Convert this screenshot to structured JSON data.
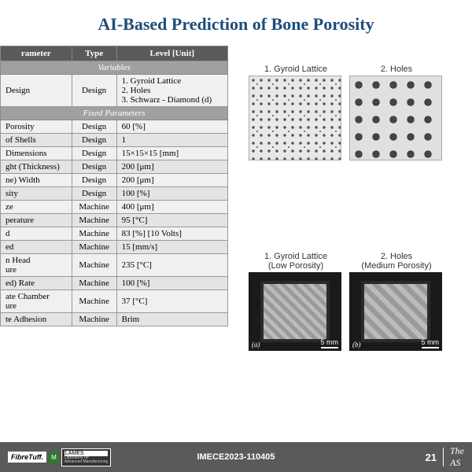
{
  "title": "AI-Based Prediction of Bone Porosity",
  "table": {
    "headers": [
      "rameter",
      "Type",
      "Level [Unit]"
    ],
    "sub_variables": "Variables",
    "sub_fixed": "Fixed Parameters",
    "var_rows": [
      {
        "param": "Design",
        "type": "Design",
        "level": "1. Gyroid Lattice\n2. Holes\n3. Schwarz - Diamond (d)"
      }
    ],
    "fixed_rows": [
      {
        "param": "Porosity",
        "type": "Design",
        "level": "60 [%]"
      },
      {
        "param": "of Shells",
        "type": "Design",
        "level": "1"
      },
      {
        "param": "Dimensions",
        "type": "Design",
        "level": "15×15×15 [mm]"
      },
      {
        "param": "ght (Thickness)",
        "type": "Design",
        "level": "200 [μm]"
      },
      {
        "param": "ne) Width",
        "type": "Design",
        "level": "200 [μm]"
      },
      {
        "param": "sity",
        "type": "Design",
        "level": "100 [%]"
      },
      {
        "param": "ze",
        "type": "Machine",
        "level": "400 [μm]"
      },
      {
        "param": "perature",
        "type": "Machine",
        "level": "95 [°C]"
      },
      {
        "param": "d",
        "type": "Machine",
        "level": "83 [%] [10 Volts]"
      },
      {
        "param": "ed",
        "type": "Machine",
        "level": "15 [mm/s]"
      },
      {
        "param": "n Head\nure",
        "type": "Machine",
        "level": "235 [°C]"
      },
      {
        "param": "ed) Rate",
        "type": "Machine",
        "level": "100 [%]"
      },
      {
        "param": "ate Chamber\nure",
        "type": "Machine",
        "level": "37 [°C]"
      },
      {
        "param": "te Adhesion",
        "type": "Machine",
        "level": "Brim"
      }
    ]
  },
  "lattice": {
    "top_labels": [
      "1. Gyroid Lattice",
      "2. Holes"
    ],
    "bottom_labels": [
      "1. Gyroid Lattice\n(Low Porosity)",
      "2. Holes\n(Medium Porosity)"
    ],
    "photo_tags": [
      "(a)",
      "(b)"
    ],
    "scale": "5 mm"
  },
  "footer": {
    "logo1": "FibreTuff.",
    "logo2": "M",
    "logo3_top": "LAMES",
    "center": "IMECE2023-110405",
    "page": "21",
    "right1": "The",
    "right2": "AS"
  }
}
